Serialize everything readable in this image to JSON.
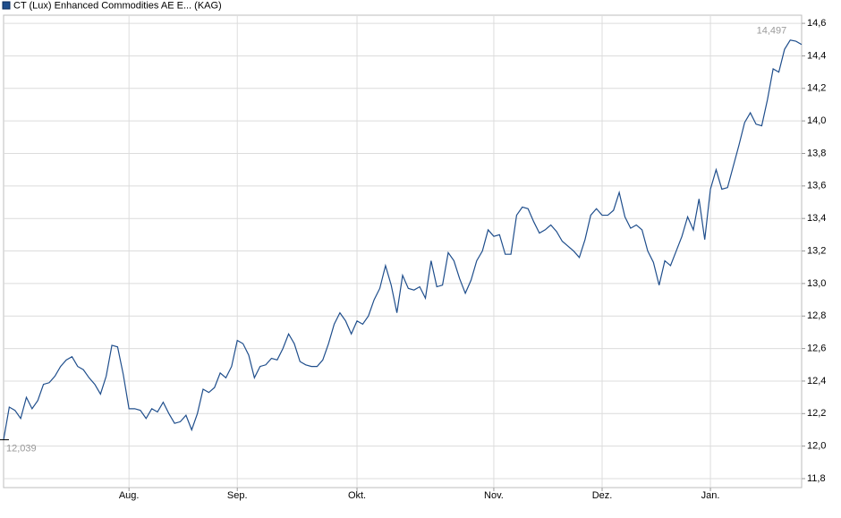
{
  "chart_data": {
    "type": "line",
    "title": "CT (Lux) Enhanced Commodities AE E... (KAG)",
    "categories": [
      null,
      null,
      null,
      null,
      null,
      null,
      null,
      null,
      null,
      null,
      null,
      null,
      null,
      null,
      null,
      null,
      null,
      null,
      null,
      null,
      null,
      null,
      "Aug.",
      null,
      null,
      null,
      null,
      null,
      null,
      null,
      null,
      null,
      null,
      null,
      null,
      null,
      null,
      null,
      null,
      null,
      null,
      "Sep.",
      null,
      null,
      null,
      null,
      null,
      null,
      null,
      null,
      null,
      null,
      null,
      null,
      null,
      null,
      null,
      null,
      null,
      null,
      null,
      null,
      "Okt.",
      null,
      null,
      null,
      null,
      null,
      null,
      null,
      null,
      null,
      null,
      null,
      null,
      null,
      null,
      null,
      null,
      null,
      null,
      null,
      null,
      null,
      null,
      null,
      "Nov.",
      null,
      null,
      null,
      null,
      null,
      null,
      null,
      null,
      null,
      null,
      null,
      null,
      null,
      null,
      null,
      null,
      null,
      null,
      "Dez.",
      null,
      null,
      null,
      null,
      null,
      null,
      null,
      null,
      null,
      null,
      null,
      null,
      null,
      null,
      null,
      null,
      null,
      null,
      "Jan.",
      null,
      null,
      null,
      null,
      null,
      null,
      null,
      null,
      null,
      null,
      null,
      null,
      null,
      null,
      null,
      null
    ],
    "series": [
      {
        "name": "CT (Lux) Enhanced Commodities AE E... (KAG)",
        "color": "#1f4e8c",
        "values": [
          12.039,
          12.24,
          12.22,
          12.17,
          12.3,
          12.23,
          12.28,
          12.38,
          12.39,
          12.43,
          12.49,
          12.53,
          12.55,
          12.49,
          12.47,
          12.42,
          12.38,
          12.32,
          12.43,
          12.62,
          12.61,
          12.44,
          12.23,
          12.23,
          12.22,
          12.17,
          12.23,
          12.21,
          12.27,
          12.2,
          12.14,
          12.15,
          12.19,
          12.1,
          12.2,
          12.35,
          12.33,
          12.36,
          12.45,
          12.42,
          12.49,
          12.65,
          12.63,
          12.56,
          12.42,
          12.49,
          12.5,
          12.54,
          12.53,
          12.6,
          12.69,
          12.63,
          12.52,
          12.5,
          12.49,
          12.49,
          12.53,
          12.63,
          12.75,
          12.82,
          12.77,
          12.69,
          12.77,
          12.75,
          12.8,
          12.9,
          12.97,
          13.11,
          12.99,
          12.82,
          13.05,
          12.97,
          12.96,
          12.98,
          12.91,
          13.14,
          12.98,
          12.99,
          13.19,
          13.14,
          13.03,
          12.94,
          13.02,
          13.14,
          13.2,
          13.33,
          13.29,
          13.3,
          13.18,
          13.18,
          13.42,
          13.47,
          13.46,
          13.38,
          13.31,
          13.33,
          13.36,
          13.32,
          13.26,
          13.23,
          13.2,
          13.16,
          13.27,
          13.42,
          13.46,
          13.42,
          13.42,
          13.45,
          13.56,
          13.41,
          13.34,
          13.36,
          13.33,
          13.2,
          13.13,
          12.99,
          13.14,
          13.11,
          13.2,
          13.29,
          13.41,
          13.33,
          13.52,
          13.27,
          13.58,
          13.7,
          13.58,
          13.59,
          13.72,
          13.85,
          13.99,
          14.05,
          13.98,
          13.97,
          14.13,
          14.32,
          14.3,
          14.44,
          14.497,
          14.49,
          14.47
        ],
        "value_labels": [
          "12,039",
          null,
          null,
          null,
          null,
          null,
          null,
          null,
          null,
          null,
          null,
          null,
          null,
          null,
          null,
          null,
          null,
          null,
          null,
          null,
          null,
          null,
          null,
          null,
          null,
          null,
          null,
          null,
          null,
          null,
          null,
          null,
          null,
          null,
          null,
          null,
          null,
          null,
          null,
          null,
          null,
          null,
          null,
          null,
          null,
          null,
          null,
          null,
          null,
          null,
          null,
          null,
          null,
          null,
          null,
          null,
          null,
          null,
          null,
          null,
          null,
          null,
          null,
          null,
          null,
          null,
          null,
          null,
          null,
          null,
          null,
          null,
          null,
          null,
          null,
          null,
          null,
          null,
          null,
          null,
          null,
          null,
          null,
          null,
          null,
          null,
          null,
          null,
          null,
          null,
          null,
          null,
          null,
          null,
          null,
          null,
          null,
          null,
          null,
          null,
          null,
          null,
          null,
          null,
          null,
          null,
          null,
          null,
          null,
          null,
          null,
          null,
          null,
          null,
          null,
          null,
          null,
          null,
          null,
          null,
          null,
          null,
          null,
          null,
          null,
          null,
          null,
          null,
          null,
          null,
          null,
          null,
          null,
          null,
          null,
          null,
          null,
          null,
          "14,497",
          null,
          null
        ]
      }
    ],
    "ylim": [
      11.745,
      14.65
    ],
    "yticks": [
      {
        "value": 11.8,
        "label": "11,8"
      },
      {
        "value": 12.0,
        "label": "12,0"
      },
      {
        "value": 12.2,
        "label": "12,2"
      },
      {
        "value": 12.4,
        "label": "12,4"
      },
      {
        "value": 12.6,
        "label": "12,6"
      },
      {
        "value": 12.8,
        "label": "12,8"
      },
      {
        "value": 13.0,
        "label": "13,0"
      },
      {
        "value": 13.2,
        "label": "13,2"
      },
      {
        "value": 13.4,
        "label": "13,4"
      },
      {
        "value": 13.6,
        "label": "13,6"
      },
      {
        "value": 13.8,
        "label": "13,8"
      },
      {
        "value": 14.0,
        "label": "14,0"
      },
      {
        "value": 14.2,
        "label": "14,2"
      },
      {
        "value": 14.4,
        "label": "14,4"
      },
      {
        "value": 14.6,
        "label": "14,6"
      }
    ],
    "grid": true
  }
}
